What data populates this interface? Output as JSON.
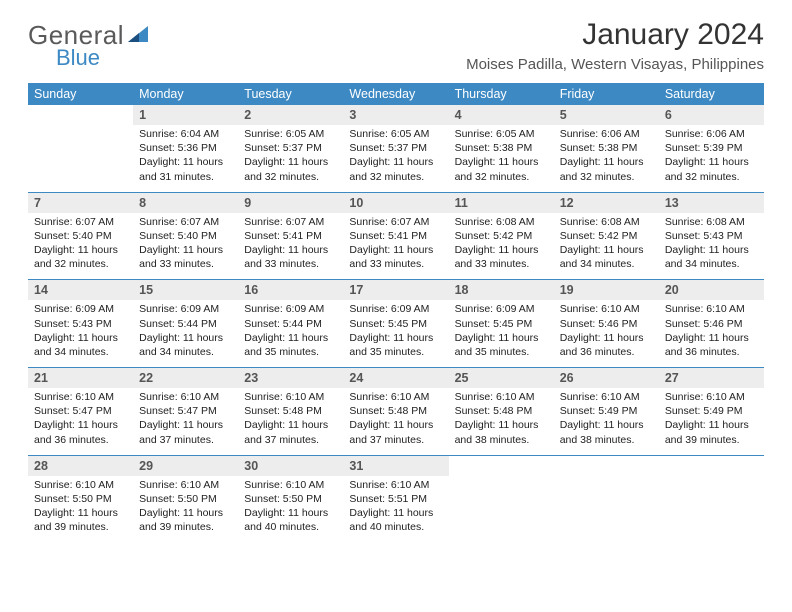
{
  "brand": {
    "text1": "General",
    "text2": "Blue",
    "text_color": "#5a5a5a",
    "accent_color": "#3d89c3"
  },
  "title": "January 2024",
  "location": "Moises Padilla, Western Visayas, Philippines",
  "header_bg": "#3d89c3",
  "header_fg": "#ffffff",
  "daynum_bg": "#ededed",
  "rule_color": "#3d89c3",
  "days_of_week": [
    "Sunday",
    "Monday",
    "Tuesday",
    "Wednesday",
    "Thursday",
    "Friday",
    "Saturday"
  ],
  "weeks": [
    [
      null,
      {
        "n": "1",
        "sr": "6:04 AM",
        "ss": "5:36 PM",
        "dl": "11 hours and 31 minutes."
      },
      {
        "n": "2",
        "sr": "6:05 AM",
        "ss": "5:37 PM",
        "dl": "11 hours and 32 minutes."
      },
      {
        "n": "3",
        "sr": "6:05 AM",
        "ss": "5:37 PM",
        "dl": "11 hours and 32 minutes."
      },
      {
        "n": "4",
        "sr": "6:05 AM",
        "ss": "5:38 PM",
        "dl": "11 hours and 32 minutes."
      },
      {
        "n": "5",
        "sr": "6:06 AM",
        "ss": "5:38 PM",
        "dl": "11 hours and 32 minutes."
      },
      {
        "n": "6",
        "sr": "6:06 AM",
        "ss": "5:39 PM",
        "dl": "11 hours and 32 minutes."
      }
    ],
    [
      {
        "n": "7",
        "sr": "6:07 AM",
        "ss": "5:40 PM",
        "dl": "11 hours and 32 minutes."
      },
      {
        "n": "8",
        "sr": "6:07 AM",
        "ss": "5:40 PM",
        "dl": "11 hours and 33 minutes."
      },
      {
        "n": "9",
        "sr": "6:07 AM",
        "ss": "5:41 PM",
        "dl": "11 hours and 33 minutes."
      },
      {
        "n": "10",
        "sr": "6:07 AM",
        "ss": "5:41 PM",
        "dl": "11 hours and 33 minutes."
      },
      {
        "n": "11",
        "sr": "6:08 AM",
        "ss": "5:42 PM",
        "dl": "11 hours and 33 minutes."
      },
      {
        "n": "12",
        "sr": "6:08 AM",
        "ss": "5:42 PM",
        "dl": "11 hours and 34 minutes."
      },
      {
        "n": "13",
        "sr": "6:08 AM",
        "ss": "5:43 PM",
        "dl": "11 hours and 34 minutes."
      }
    ],
    [
      {
        "n": "14",
        "sr": "6:09 AM",
        "ss": "5:43 PM",
        "dl": "11 hours and 34 minutes."
      },
      {
        "n": "15",
        "sr": "6:09 AM",
        "ss": "5:44 PM",
        "dl": "11 hours and 34 minutes."
      },
      {
        "n": "16",
        "sr": "6:09 AM",
        "ss": "5:44 PM",
        "dl": "11 hours and 35 minutes."
      },
      {
        "n": "17",
        "sr": "6:09 AM",
        "ss": "5:45 PM",
        "dl": "11 hours and 35 minutes."
      },
      {
        "n": "18",
        "sr": "6:09 AM",
        "ss": "5:45 PM",
        "dl": "11 hours and 35 minutes."
      },
      {
        "n": "19",
        "sr": "6:10 AM",
        "ss": "5:46 PM",
        "dl": "11 hours and 36 minutes."
      },
      {
        "n": "20",
        "sr": "6:10 AM",
        "ss": "5:46 PM",
        "dl": "11 hours and 36 minutes."
      }
    ],
    [
      {
        "n": "21",
        "sr": "6:10 AM",
        "ss": "5:47 PM",
        "dl": "11 hours and 36 minutes."
      },
      {
        "n": "22",
        "sr": "6:10 AM",
        "ss": "5:47 PM",
        "dl": "11 hours and 37 minutes."
      },
      {
        "n": "23",
        "sr": "6:10 AM",
        "ss": "5:48 PM",
        "dl": "11 hours and 37 minutes."
      },
      {
        "n": "24",
        "sr": "6:10 AM",
        "ss": "5:48 PM",
        "dl": "11 hours and 37 minutes."
      },
      {
        "n": "25",
        "sr": "6:10 AM",
        "ss": "5:48 PM",
        "dl": "11 hours and 38 minutes."
      },
      {
        "n": "26",
        "sr": "6:10 AM",
        "ss": "5:49 PM",
        "dl": "11 hours and 38 minutes."
      },
      {
        "n": "27",
        "sr": "6:10 AM",
        "ss": "5:49 PM",
        "dl": "11 hours and 39 minutes."
      }
    ],
    [
      {
        "n": "28",
        "sr": "6:10 AM",
        "ss": "5:50 PM",
        "dl": "11 hours and 39 minutes."
      },
      {
        "n": "29",
        "sr": "6:10 AM",
        "ss": "5:50 PM",
        "dl": "11 hours and 39 minutes."
      },
      {
        "n": "30",
        "sr": "6:10 AM",
        "ss": "5:50 PM",
        "dl": "11 hours and 40 minutes."
      },
      {
        "n": "31",
        "sr": "6:10 AM",
        "ss": "5:51 PM",
        "dl": "11 hours and 40 minutes."
      },
      null,
      null,
      null
    ]
  ],
  "labels": {
    "sunrise": "Sunrise: ",
    "sunset": "Sunset: ",
    "daylight": "Daylight: "
  }
}
